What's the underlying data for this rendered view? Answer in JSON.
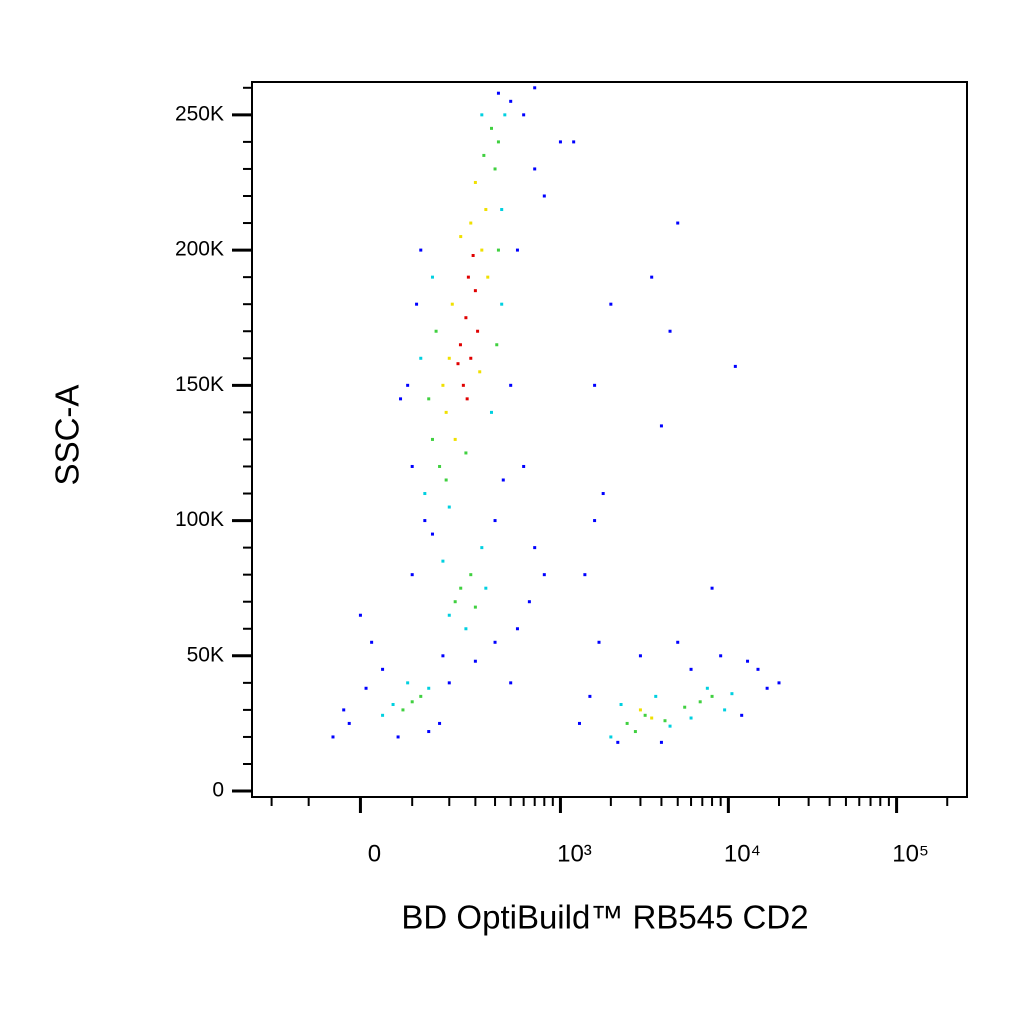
{
  "chart_data": {
    "type": "scatter",
    "xlabel": "BD OptiBuild™ RB545 CD2",
    "ylabel": "SSC-A",
    "xscale": "arcsinh",
    "xcofactor": 130,
    "xlim": [
      -272,
      262144
    ],
    "ylim": [
      -2200,
      262144
    ],
    "xticks": [
      0,
      {
        "value": 1000,
        "label": "10³"
      },
      {
        "value": 10000,
        "label": "10⁴"
      },
      {
        "value": 100000,
        "label": "10⁵"
      }
    ],
    "xminorticks": [
      -200,
      -100,
      100,
      200,
      300,
      400,
      500,
      600,
      700,
      800,
      900,
      2000,
      3000,
      4000,
      5000,
      6000,
      7000,
      8000,
      9000,
      20000,
      30000,
      40000,
      50000,
      60000,
      70000,
      80000,
      90000,
      200000
    ],
    "yticks": [
      0,
      {
        "value": 50000,
        "label": "50K"
      },
      {
        "value": 100000,
        "label": "100K"
      },
      {
        "value": 150000,
        "label": "150K"
      },
      {
        "value": 200000,
        "label": "200K"
      },
      {
        "value": 250000,
        "label": "250K"
      }
    ],
    "yminorticks": [
      10000,
      20000,
      30000,
      40000,
      60000,
      70000,
      80000,
      90000,
      110000,
      120000,
      130000,
      140000,
      160000,
      170000,
      180000,
      190000,
      210000,
      220000,
      230000,
      240000,
      260000
    ],
    "series": [
      {
        "color": "#0000ff",
        "x": [
          100,
          90,
          75,
          120,
          600,
          500,
          420,
          700,
          550,
          110,
          500,
          600,
          130,
          450,
          700,
          150,
          800,
          100,
          550,
          650,
          400,
          300,
          180,
          500,
          -50,
          -30,
          10,
          40,
          20,
          0,
          170,
          140,
          70,
          -20,
          200,
          1300,
          1500,
          1700,
          1400,
          1800,
          1600,
          2000,
          3500,
          4500,
          5000,
          11000,
          4000,
          1600,
          2200,
          4000,
          6000,
          8000,
          9000,
          12000,
          15000,
          17000,
          20000,
          13000,
          3000,
          5000,
          800,
          1000,
          1200,
          700,
          400
        ],
        "values": [
          120000,
          150000,
          145000,
          200000,
          250000,
          255000,
          258000,
          230000,
          200000,
          180000,
          150000,
          120000,
          100000,
          115000,
          90000,
          95000,
          80000,
          80000,
          60000,
          70000,
          55000,
          48000,
          50000,
          40000,
          20000,
          30000,
          38000,
          45000,
          55000,
          65000,
          25000,
          22000,
          20000,
          25000,
          40000,
          25000,
          35000,
          55000,
          80000,
          110000,
          150000,
          180000,
          190000,
          170000,
          210000,
          157000,
          135000,
          100000,
          18000,
          18000,
          45000,
          75000,
          50000,
          28000,
          45000,
          38000,
          40000,
          48000,
          50000,
          55000,
          220000,
          240000,
          240000,
          260000,
          100000
        ]
      },
      {
        "color": "#00d0e0",
        "x": [
          130,
          120,
          460,
          440,
          150,
          380,
          200,
          440,
          330,
          180,
          330,
          260,
          200,
          350,
          60,
          140,
          90,
          40,
          2000,
          2300,
          3700,
          4500,
          7500,
          9500,
          6000,
          10500
        ],
        "values": [
          110000,
          160000,
          250000,
          215000,
          190000,
          140000,
          105000,
          180000,
          250000,
          85000,
          90000,
          60000,
          65000,
          75000,
          32000,
          38000,
          40000,
          28000,
          20000,
          32000,
          35000,
          24000,
          38000,
          30000,
          27000,
          36000
        ]
      },
      {
        "color": "#40d040",
        "x": [
          150,
          170,
          400,
          420,
          380,
          160,
          190,
          420,
          340,
          140,
          410,
          260,
          240,
          280,
          220,
          300,
          100,
          120,
          80,
          2500,
          3200,
          4200,
          6800,
          8000,
          5500,
          2800
        ],
        "values": [
          130000,
          120000,
          230000,
          240000,
          245000,
          170000,
          115000,
          200000,
          235000,
          145000,
          165000,
          125000,
          75000,
          80000,
          70000,
          68000,
          33000,
          35000,
          30000,
          25000,
          28000,
          26000,
          33000,
          35000,
          31000,
          22000
        ]
      },
      {
        "color": "#f0e000",
        "x": [
          190,
          210,
          330,
          350,
          220,
          300,
          360,
          200,
          280,
          240,
          320,
          180,
          3500,
          3000
        ],
        "values": [
          140000,
          180000,
          200000,
          215000,
          130000,
          225000,
          190000,
          160000,
          210000,
          205000,
          155000,
          150000,
          27000,
          30000
        ]
      },
      {
        "color": "#e00000",
        "x": [
          239,
          260,
          280,
          300,
          270,
          250,
          310,
          230,
          290,
          265
        ],
        "values": [
          165000,
          175000,
          160000,
          185000,
          190000,
          150000,
          170000,
          158000,
          198000,
          145000
        ]
      }
    ]
  }
}
